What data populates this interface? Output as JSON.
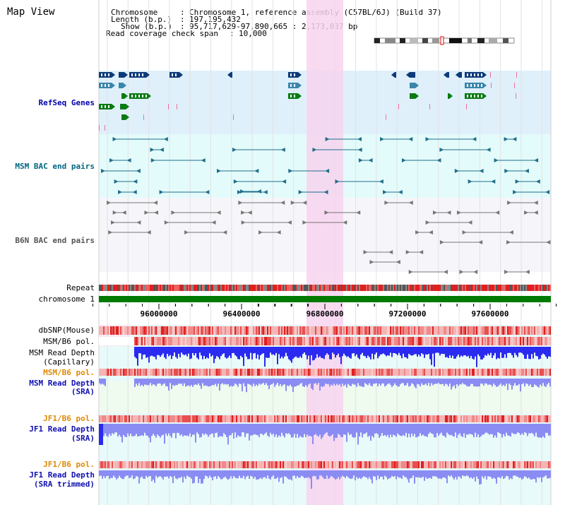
{
  "title": "Map View",
  "header": {
    "chromosome_label": "Chromosome",
    "chromosome_value": "Chromosome 1, reference assembly (C57BL/6J) (Build 37)",
    "length_label": "Length (b.p.)",
    "length_value": "197,195,432",
    "show_label": "Show (b.p.)",
    "show_value": "95,717,629-97,890,665 : 2,173,037 bp",
    "coverage_label": "Read coverage check span",
    "coverage_value": "10,000"
  },
  "tracks": {
    "refseq": "RefSeq Genes",
    "msm_bac": "MSM BAC end pairs",
    "b6n_bac": "B6N BAC end pairs",
    "repeat": "Repeat",
    "chromosome": "chromosome 1",
    "dbsnp": "dbSNP(Mouse)",
    "msm_b6_pol_1": "MSM/B6 pol.",
    "msm_read_depth_cap_1": "MSM Read Depth",
    "msm_read_depth_cap_2": "(Capillary)",
    "msm_b6_pol_2": "MSM/B6 pol.",
    "msm_read_depth_sra_1": "MSM Read Depth",
    "msm_read_depth_sra_2": "(SRA)",
    "jf1_b6_pol_1": "JF1/B6 pol.",
    "jf1_read_depth_sra_1": "JF1 Read Depth",
    "jf1_read_depth_sra_2": "(SRA)",
    "jf1_b6_pol_2": "JF1/B6 pol.",
    "jf1_read_depth_trim_1": "JF1 Read Depth",
    "jf1_read_depth_trim_2": "(SRA trimmed)"
  },
  "axis": {
    "ticks": [
      "96000000",
      "96400000",
      "96800000",
      "97200000",
      "97600000"
    ]
  },
  "colors": {
    "highlight": "#f7d4ef",
    "refseq_bg": "#dff0fb",
    "bac_bg": "#e4fbfb",
    "b6n_bg": "#f6f6fa",
    "gene_dark": "#0d3a78",
    "gene_mid": "#3b86ab",
    "gene_green": "#0a7a12",
    "bac_teal": "#1f6f8b",
    "bac_grey": "#777777",
    "chrom_green": "#007a00",
    "depth_blue": "#2a2af0",
    "depth_light": "#8a8cf4"
  }
}
